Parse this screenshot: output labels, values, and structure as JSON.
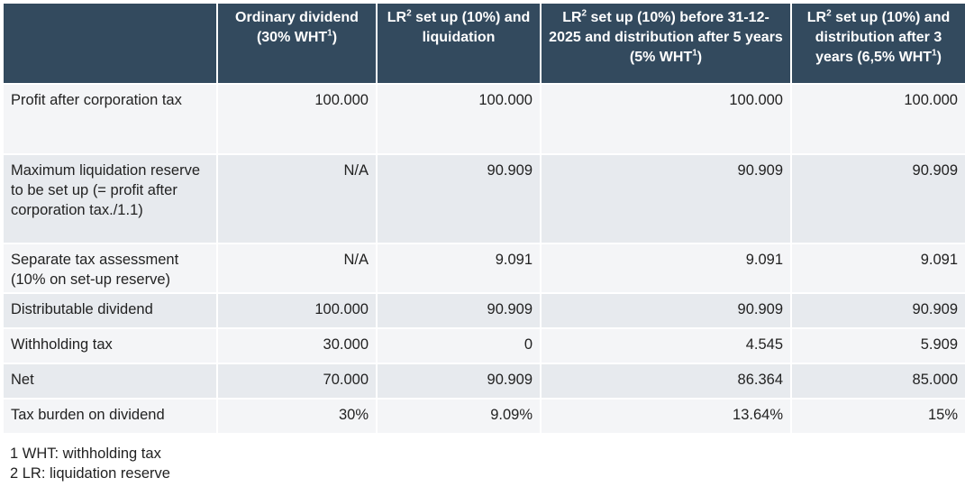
{
  "header": {
    "col1": {
      "text": "Ordinary dividend (30% WHT",
      "sup": "1",
      "tail": ")"
    },
    "col2": {
      "pre": "LR",
      "sup": "2",
      "text": " set up (10%) and liquidation"
    },
    "col3": {
      "pre": "LR",
      "sup": "2",
      "text": " set up (10%) before 31-12-2025 and distribution after 5 years (5% WHT",
      "sup2": "1",
      "tail": ")"
    },
    "col4": {
      "pre": "LR",
      "sup": "2",
      "text": " set up (10%) and distribution after 3 years (6,5% WHT",
      "sup2": "1",
      "tail": ")"
    }
  },
  "rows": [
    {
      "label": "Profit after corporation tax",
      "values": [
        "100.000",
        "100.000",
        "100.000",
        "100.000"
      ]
    },
    {
      "label": "Maximum liquidation reserve to be set up (= profit after corporation tax./1.1)",
      "values": [
        "N/A",
        "90.909",
        "90.909",
        "90.909"
      ]
    },
    {
      "label": "Separate tax assessment (10% on set-up reserve)",
      "values": [
        "N/A",
        "9.091",
        "9.091",
        "9.091"
      ]
    },
    {
      "label": "Distributable dividend",
      "values": [
        "100.000",
        "90.909",
        "90.909",
        "90.909"
      ]
    },
    {
      "label": "Withholding tax",
      "values": [
        "30.000",
        "0",
        "4.545",
        "5.909"
      ]
    },
    {
      "label": "Net",
      "values": [
        "70.000",
        "90.909",
        "86.364",
        "85.000"
      ]
    },
    {
      "label": "Tax burden on dividend",
      "values": [
        "30%",
        "9.09%",
        "13.64%",
        "15%"
      ]
    }
  ],
  "footnotes": [
    "1 WHT: withholding tax",
    "2 LR: liquidation reserve"
  ],
  "colors": {
    "header_bg": "#334a5e",
    "row_light": "#f4f5f7",
    "row_dark": "#e7eaee"
  }
}
